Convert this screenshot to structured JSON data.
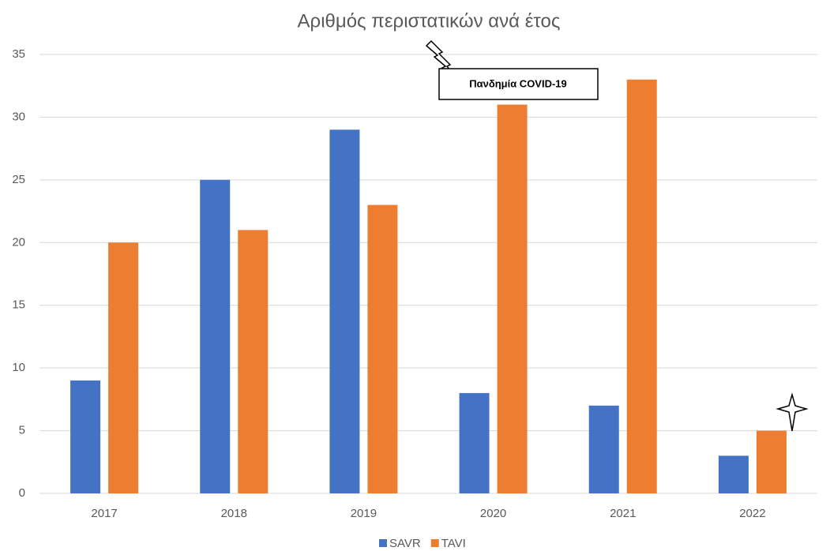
{
  "chart_data": {
    "type": "bar",
    "title": "Αριθμός περιστατικών ανά έτος",
    "categories": [
      "2017",
      "2018",
      "2019",
      "2020",
      "2021",
      "2022"
    ],
    "series": [
      {
        "name": "SAVR",
        "color": "#4472c4",
        "values": [
          9,
          25,
          29,
          8,
          7,
          3
        ]
      },
      {
        "name": "TAVI",
        "color": "#ed7d31",
        "values": [
          20,
          21,
          23,
          31,
          33,
          5
        ]
      }
    ],
    "ylim": [
      0,
      35
    ],
    "yticks": [
      0,
      5,
      10,
      15,
      20,
      25,
      30,
      35
    ],
    "grid": true,
    "annotation": "Πανδημία COVID-19",
    "legend": "bottom"
  }
}
